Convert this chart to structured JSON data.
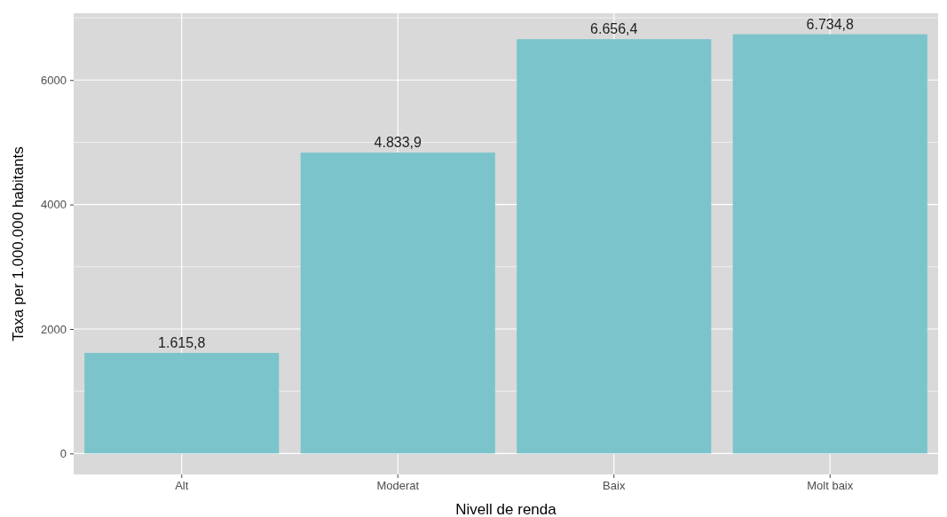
{
  "chart_data": {
    "type": "bar",
    "xlabel": "Nivell de renda",
    "ylabel": "Taxa per 1.000.000 habitants",
    "categories": [
      "Alt",
      "Moderat",
      "Baix",
      "Molt baix"
    ],
    "values": [
      1615.8,
      4833.9,
      6656.4,
      6734.8
    ],
    "value_labels": [
      "1.615,8",
      "4.833,9",
      "6.656,4",
      "6.734,8"
    ],
    "color": "#7bc4cc",
    "ylim": [
      -337,
      7072
    ],
    "yticks": [
      0,
      2000,
      4000,
      6000
    ],
    "grid": true
  }
}
